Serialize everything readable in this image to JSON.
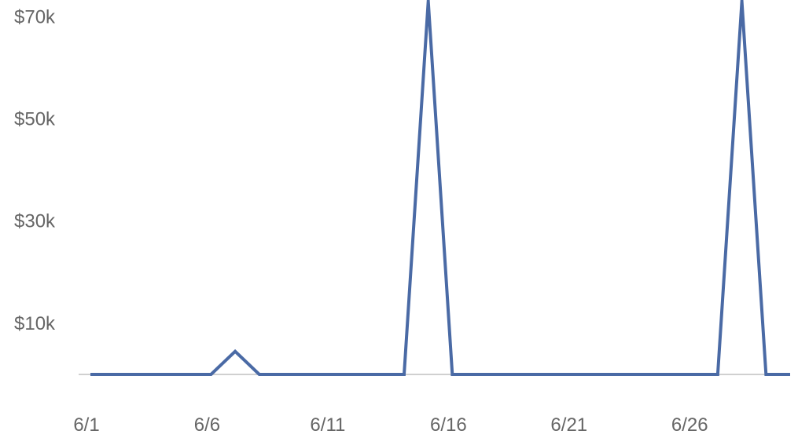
{
  "chart_data": {
    "type": "line",
    "title": "",
    "xlabel": "",
    "ylabel": "",
    "x": [
      "6/1",
      "6/2",
      "6/3",
      "6/4",
      "6/5",
      "6/6",
      "6/7",
      "6/8",
      "6/9",
      "6/10",
      "6/11",
      "6/12",
      "6/13",
      "6/14",
      "6/15",
      "6/16",
      "6/17",
      "6/18",
      "6/19",
      "6/20",
      "6/21",
      "6/22",
      "6/23",
      "6/24",
      "6/25",
      "6/26",
      "6/27",
      "6/28",
      "6/29",
      "6/30"
    ],
    "x_tick_labels": [
      "6/1",
      "6/6",
      "6/11",
      "6/16",
      "6/21",
      "6/26"
    ],
    "y_tick_values": [
      10000,
      30000,
      50000,
      70000
    ],
    "y_tick_labels": [
      "$10k",
      "$30k",
      "$50k",
      "$70k"
    ],
    "ylim": [
      0,
      73000
    ],
    "grid": false,
    "legend": "none",
    "series": [
      {
        "color": "#4a6aa5",
        "values": [
          0,
          0,
          0,
          0,
          0,
          0,
          4500,
          0,
          0,
          0,
          0,
          0,
          0,
          0,
          73000,
          0,
          0,
          0,
          0,
          0,
          0,
          0,
          0,
          0,
          0,
          0,
          0,
          73000,
          0,
          0
        ]
      }
    ]
  }
}
